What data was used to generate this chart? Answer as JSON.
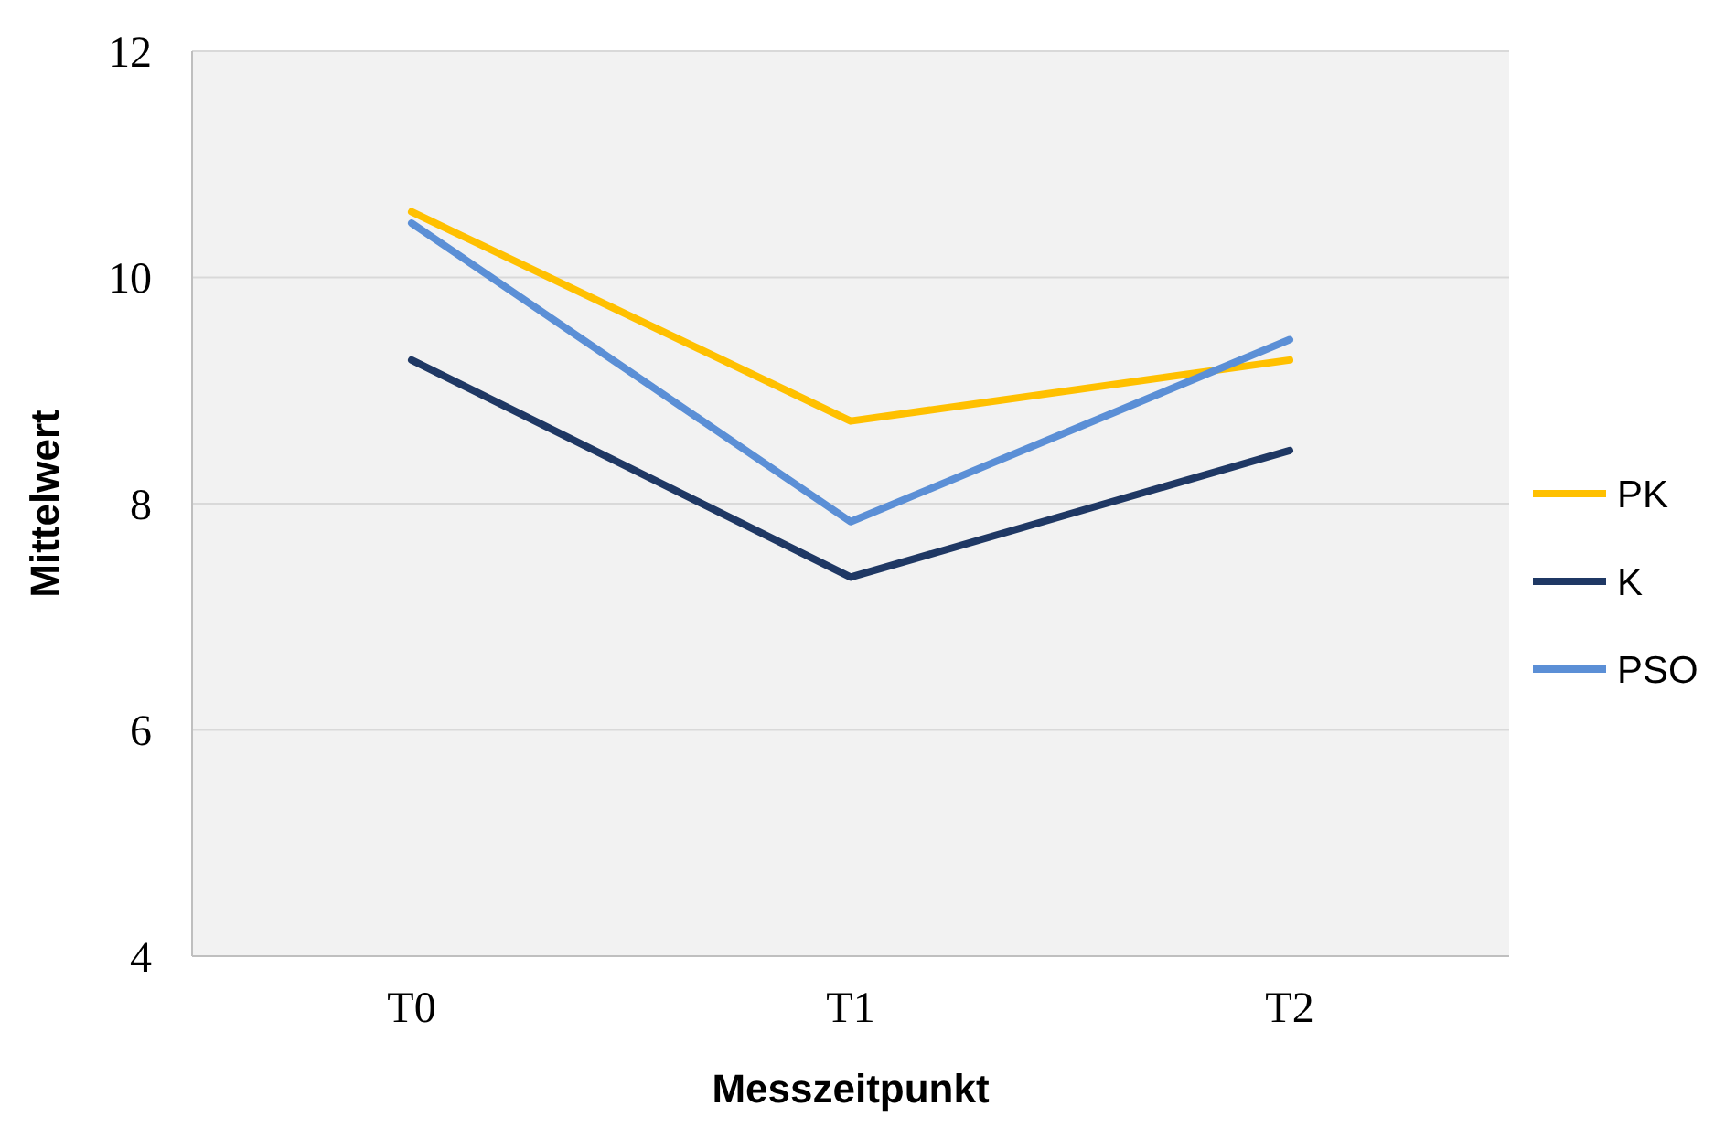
{
  "chart_data": {
    "type": "line",
    "xlabel": "Messzeitpunkt",
    "ylabel": "Mittelwert",
    "categories": [
      "T0",
      "T1",
      "T2"
    ],
    "series": [
      {
        "name": "PK",
        "color": "#ffc000",
        "values": [
          10.58,
          8.73,
          9.27
        ]
      },
      {
        "name": "K",
        "color": "#1f3864",
        "values": [
          9.27,
          7.35,
          8.47
        ]
      },
      {
        "name": "PSO",
        "color": "#5b8fd6",
        "values": [
          10.48,
          7.84,
          9.45
        ]
      }
    ],
    "ylim": [
      4,
      12
    ],
    "yticks": [
      4,
      6,
      8,
      10,
      12
    ],
    "grid": "y",
    "legend": "right",
    "marker": "none",
    "line_style": "solid"
  }
}
